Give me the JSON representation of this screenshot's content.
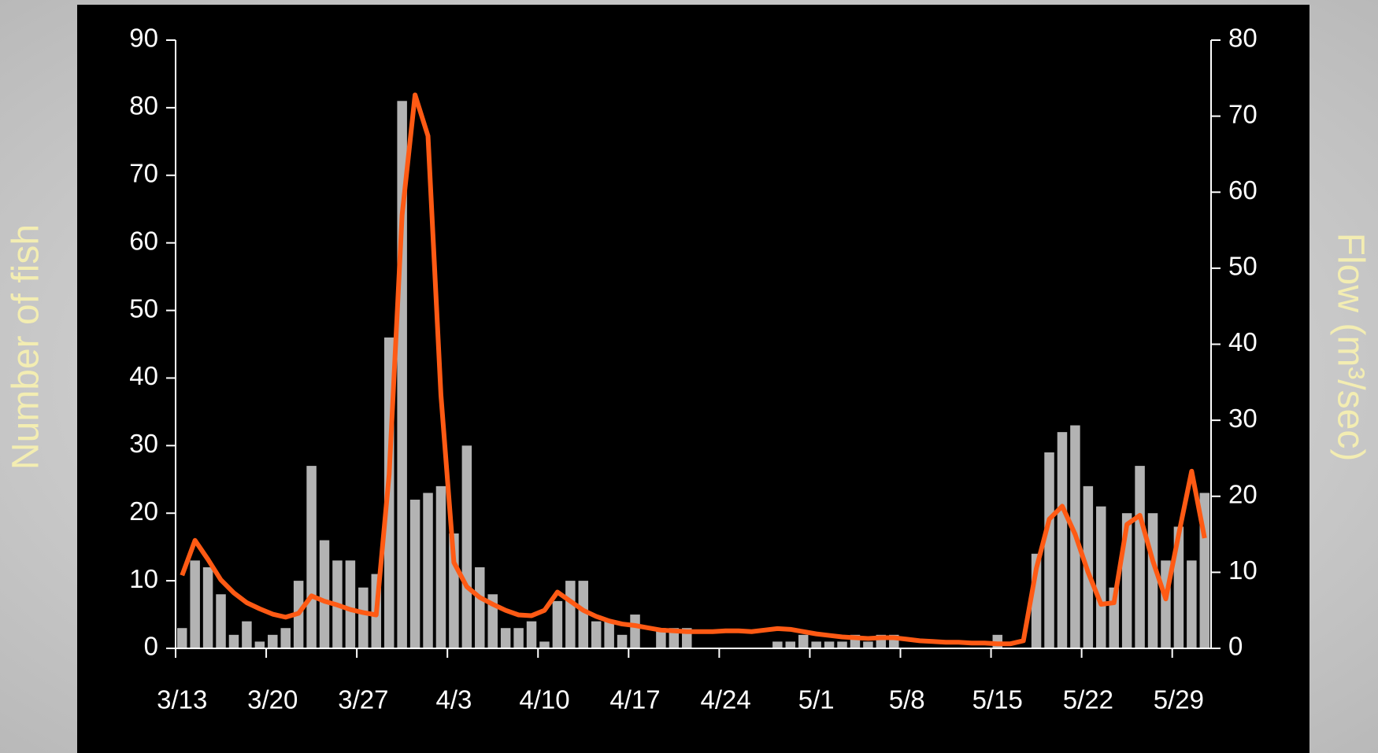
{
  "chart_data": {
    "type": "bar",
    "ylabel": "Number of fish",
    "y2label": "Flow (m³/sec)",
    "categories": [
      "3/13",
      null,
      null,
      null,
      null,
      null,
      null,
      "3/20",
      null,
      null,
      null,
      null,
      null,
      null,
      "3/27",
      null,
      null,
      null,
      null,
      null,
      null,
      "4/3",
      null,
      null,
      null,
      null,
      null,
      null,
      "4/10",
      null,
      null,
      null,
      null,
      null,
      null,
      "4/17",
      null,
      null,
      null,
      null,
      null,
      null,
      "4/24",
      null,
      null,
      null,
      null,
      null,
      null,
      "5/1",
      null,
      null,
      null,
      null,
      null,
      null,
      "5/8",
      null,
      null,
      null,
      null,
      null,
      null,
      "5/15",
      null,
      null,
      null,
      null,
      null,
      null,
      "5/22",
      null,
      null,
      null,
      null,
      null,
      null,
      "5/29",
      null,
      null
    ],
    "series": [
      {
        "type": "bar",
        "color": "#b3b3b3",
        "values": [
          3,
          13,
          12,
          8,
          2,
          4,
          1,
          2,
          3,
          10,
          27,
          16,
          13,
          13,
          9,
          11,
          46,
          81,
          22,
          23,
          24,
          17,
          30,
          12,
          8,
          3,
          3,
          4,
          1,
          7,
          10,
          10,
          4,
          4,
          2,
          5,
          0,
          3,
          3,
          3,
          0,
          0,
          0,
          0,
          0,
          0,
          1,
          1,
          2,
          1,
          1,
          1,
          2,
          1,
          2,
          2,
          0,
          0,
          0,
          0,
          0,
          0,
          0,
          2,
          0,
          0,
          14,
          29,
          32,
          33,
          24,
          21,
          9,
          20,
          27,
          20,
          13,
          18,
          13,
          23
        ]
      },
      {
        "type": "line",
        "axis": "y2",
        "color": "#ff5a14",
        "values": [
          9.6,
          14.2,
          11.7,
          9,
          7.3,
          6,
          5.2,
          4.5,
          4.1,
          4.6,
          6.9,
          6.2,
          5.7,
          5.1,
          4.7,
          4.4,
          22.9,
          57,
          72.8,
          67.4,
          33.3,
          11.3,
          8.1,
          6.7,
          5.8,
          5,
          4.4,
          4.3,
          5,
          7.4,
          6.2,
          5,
          4.2,
          3.6,
          3.2,
          3,
          2.7,
          2.4,
          2.3,
          2.2,
          2.2,
          2.2,
          2.3,
          2.3,
          2.2,
          2.4,
          2.6,
          2.5,
          2.2,
          1.9,
          1.7,
          1.5,
          1.4,
          1.3,
          1.4,
          1.4,
          1.2,
          1,
          0.9,
          0.8,
          0.8,
          0.7,
          0.7,
          0.6,
          0.6,
          1,
          10.5,
          17,
          18.7,
          15,
          10,
          5.8,
          6,
          16.3,
          17.5,
          11.5,
          6.5,
          15,
          23.3,
          14.5
        ]
      }
    ],
    "ylim": [
      0,
      90
    ],
    "yticks": [
      0,
      10,
      20,
      30,
      40,
      50,
      60,
      70,
      80,
      90
    ],
    "y2lim": [
      0,
      80
    ],
    "y2ticks": [
      0,
      10,
      20,
      30,
      40,
      50,
      60,
      70,
      80
    ]
  }
}
